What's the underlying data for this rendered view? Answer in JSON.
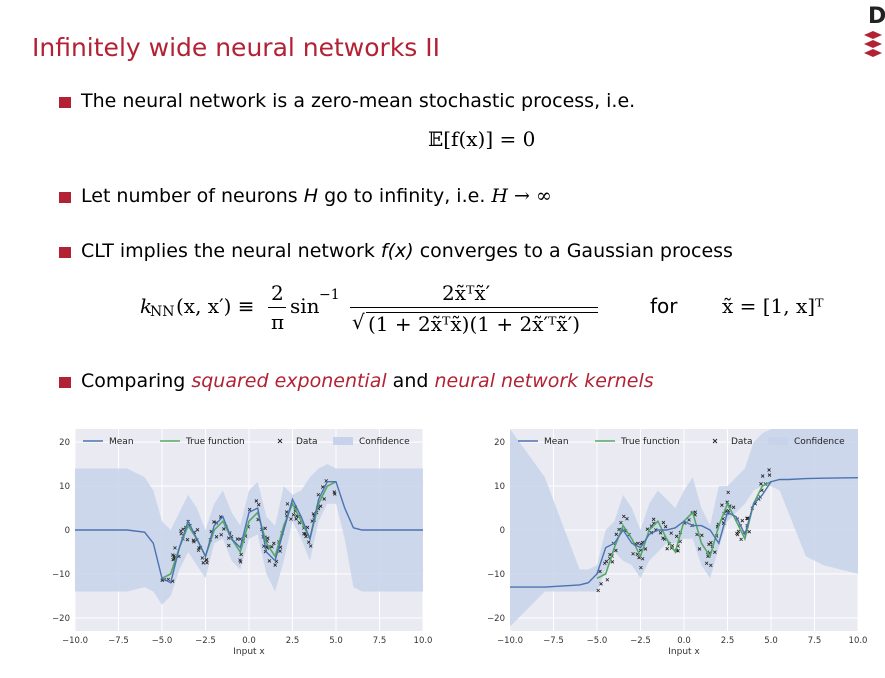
{
  "slide": {
    "title": "Infinitely wide neural networks II",
    "logo_letter": "D"
  },
  "bullets": [
    {
      "text": "The neural network is a zero-mean stochastic process, i.e."
    },
    {
      "pre": "Let number of neurons ",
      "var": "H",
      "mid": " go to infinity, i.e. ",
      "post": "H → ∞"
    },
    {
      "pre": "CLT implies the neural network ",
      "fx": "f(x)",
      "post": " converges to a Gaussian process"
    },
    {
      "pre": "Comparing ",
      "link1": "squared exponential",
      "mid": " and ",
      "link2": "neural network kernels"
    }
  ],
  "equations": {
    "zero_mean": "𝔼[f(x)] = 0",
    "kernel_lhs": "k",
    "kernel_sub": "NN",
    "kernel_args": "(x, x′) ≡",
    "frac_num": "2",
    "frac_den": "π",
    "sin": "sin",
    "sup": "−1",
    "big_num": "2x̃ᵀx̃′",
    "big_den": "(1 + 2x̃ᵀx̃)(1 + 2x̃′ᵀx̃′)",
    "for_word": "for",
    "xdef": "x̃ = [1, x]ᵀ"
  },
  "chart_data": [
    {
      "type": "line",
      "xlabel": "Input x",
      "ylabel": "",
      "xlim": [
        -10,
        10
      ],
      "ylim": [
        -23,
        23
      ],
      "xticks": [
        "−10.0",
        "−7.5",
        "−5.0",
        "−2.5",
        "0.0",
        "2.5",
        "5.0",
        "7.5",
        "10.0"
      ],
      "yticks": [
        "20",
        "10",
        "0",
        "−10",
        "−20"
      ],
      "legend": [
        "Mean",
        "True function",
        "Data",
        "Confidence"
      ],
      "legend_position": "top",
      "grid": true,
      "kernel": "squared exponential",
      "data_range": [
        -5,
        5
      ],
      "series": [
        {
          "name": "Mean",
          "x": [
            -10,
            -7,
            -6,
            -5.5,
            -5,
            -4.5,
            -4,
            -3.5,
            -3,
            -2.5,
            -2,
            -1.5,
            -1,
            -0.5,
            0,
            0.5,
            1,
            1.5,
            2,
            2.5,
            3,
            3.5,
            4,
            4.5,
            5,
            5.5,
            6,
            6.5,
            7,
            10
          ],
          "y": [
            0,
            0,
            -0.5,
            -3,
            -11,
            -12,
            -4,
            2,
            -2,
            -6,
            1,
            3,
            -2,
            -4,
            4,
            5,
            -5,
            -7,
            0,
            7,
            3,
            -2,
            7,
            11,
            11,
            5,
            0.5,
            0,
            0,
            0
          ]
        },
        {
          "name": "True function",
          "x": [
            -5,
            -4.5,
            -4,
            -3.5,
            -3,
            -2.5,
            -2,
            -1.5,
            -1,
            -0.5,
            0,
            0.5,
            1,
            1.5,
            2,
            2.5,
            3,
            3.5,
            4,
            4.5,
            5
          ],
          "y": [
            -11,
            -10,
            -4,
            1,
            -2,
            -6,
            0,
            2,
            -2,
            -5,
            2,
            4,
            -3,
            -6,
            1,
            6,
            2,
            -2,
            6,
            10,
            11
          ]
        },
        {
          "name": "Confidence",
          "upper": [
            14,
            14,
            12,
            9,
            2,
            0,
            4,
            8,
            5,
            0,
            6,
            9,
            4,
            1,
            9,
            11,
            3,
            1,
            10,
            8,
            9,
            12,
            14,
            15,
            14,
            14,
            14,
            14,
            14,
            14
          ],
          "lower": [
            -14,
            -14,
            -13,
            -14,
            -17,
            -15,
            -9,
            -5,
            -8,
            -11,
            -3,
            -2,
            -7,
            -9,
            -2,
            -1,
            -10,
            -14,
            -7,
            2,
            -2,
            -7,
            2,
            6,
            6,
            -2,
            -13,
            -14,
            -14,
            -14
          ]
        }
      ]
    },
    {
      "type": "line",
      "xlabel": "Input x",
      "ylabel": "",
      "xlim": [
        -10,
        10
      ],
      "ylim": [
        -23,
        23
      ],
      "xticks": [
        "−10.0",
        "−7.5",
        "−5.0",
        "−2.5",
        "0.0",
        "2.5",
        "5.0",
        "7.5",
        "10.0"
      ],
      "yticks": [
        "20",
        "10",
        "0",
        "−10",
        "−20"
      ],
      "legend": [
        "Mean",
        "True function",
        "Data",
        "Confidence"
      ],
      "legend_position": "top",
      "grid": true,
      "kernel": "neural network",
      "data_range": [
        -5,
        5
      ],
      "series": [
        {
          "name": "Mean",
          "x": [
            -10,
            -8,
            -6,
            -5.5,
            -5,
            -4.5,
            -4,
            -3.5,
            -3,
            -2.5,
            -2,
            -1.5,
            -1,
            -0.5,
            0,
            0.5,
            1,
            1.5,
            2,
            2.5,
            3,
            3.5,
            4,
            4.5,
            5,
            5.5,
            6,
            7,
            8,
            10
          ],
          "y": [
            -13,
            -13,
            -12.5,
            -12,
            -10,
            -4,
            -3,
            0,
            -3,
            -4,
            -1,
            0,
            0,
            0.5,
            2,
            1,
            1,
            0,
            -3,
            4,
            3,
            -1,
            6,
            8,
            11,
            11.5,
            11.5,
            11.7,
            11.8,
            11.9
          ]
        },
        {
          "name": "True function",
          "x": [
            -5,
            -4.5,
            -4,
            -3.5,
            -3,
            -2.5,
            -2,
            -1.5,
            -1,
            -0.5,
            0,
            0.5,
            1,
            1.5,
            2,
            2.5,
            3,
            3.5,
            4,
            4.5,
            5
          ],
          "y": [
            -11,
            -10,
            -4,
            1,
            -2,
            -6,
            0,
            2,
            -2,
            -5,
            2,
            4,
            -3,
            -6,
            1,
            6,
            2,
            -2,
            6,
            10,
            11
          ]
        },
        {
          "name": "Confidence",
          "upper": [
            23,
            12,
            -9,
            -9,
            -8,
            0,
            2,
            8,
            5,
            0,
            6,
            9,
            7,
            5,
            9,
            12,
            5,
            1,
            10,
            10,
            12,
            14,
            20,
            22,
            23,
            23,
            23,
            23,
            23,
            23
          ],
          "lower": [
            -22,
            -14,
            -14,
            -14,
            -14,
            -9,
            -5,
            -7,
            -8,
            -11,
            -7,
            -5,
            -3,
            -3,
            -2,
            -2,
            -8,
            -11,
            -4,
            2,
            4,
            6,
            9,
            10,
            10,
            9,
            4,
            -6,
            -8,
            -10
          ]
        }
      ]
    }
  ],
  "colors": {
    "accent": "#b22234",
    "mean": "#4c72b0",
    "true_function": "#55a868",
    "confidence": "#c7d3ea",
    "plot_bg": "#eaeaf2"
  }
}
